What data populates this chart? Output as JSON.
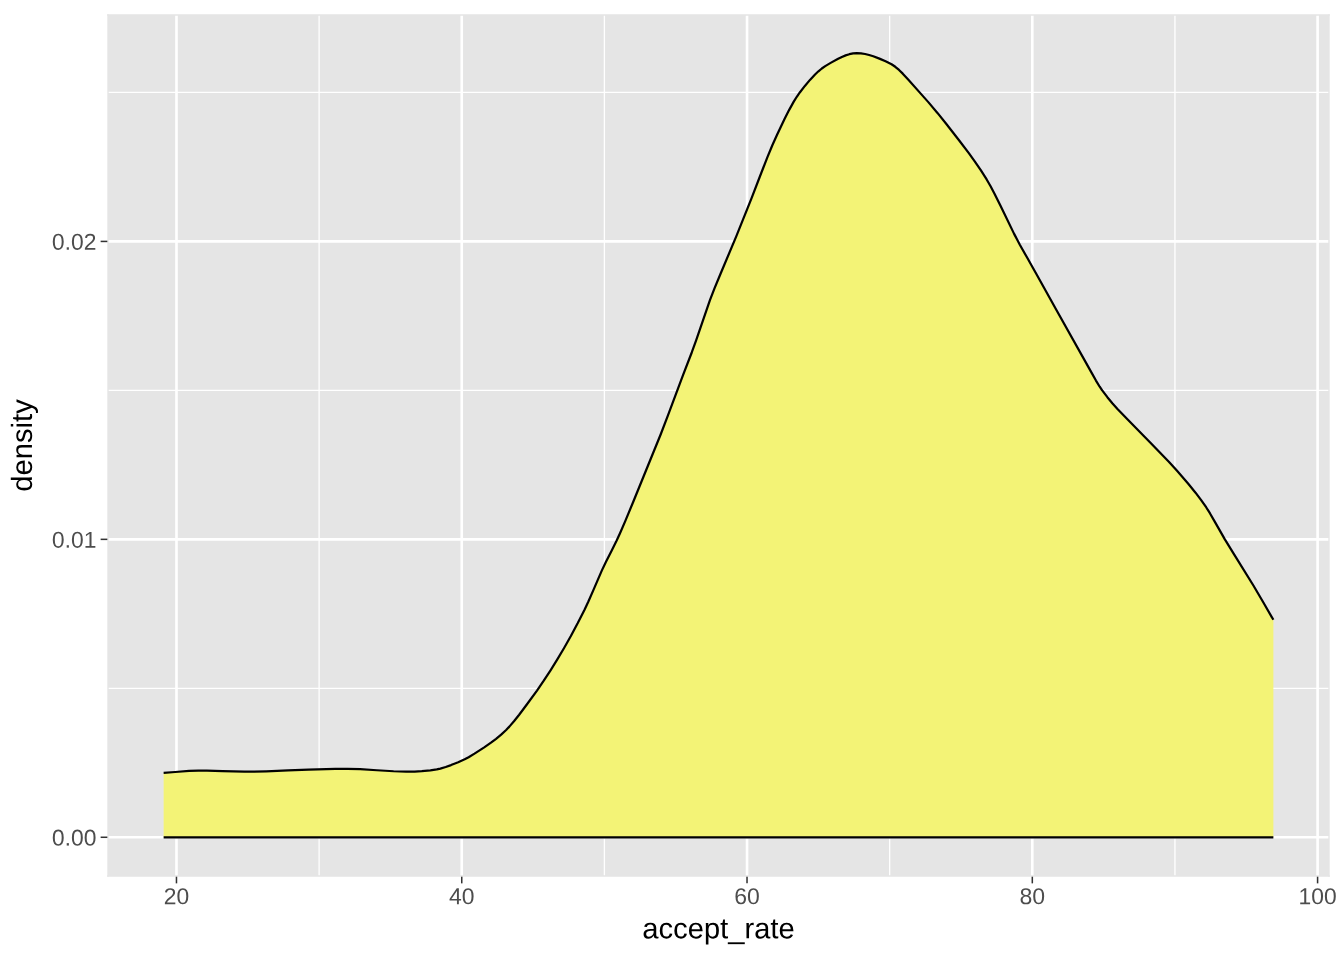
{
  "chart_data": {
    "type": "area",
    "xlabel": "accept_rate",
    "ylabel": "density",
    "x": [
      19.1,
      21.7,
      25.2,
      28.7,
      31.7,
      36.4,
      38.0,
      40.0,
      41.1,
      43.0,
      44.8,
      46.7,
      48.6,
      50.0,
      50.9,
      52.4,
      54.3,
      55.1,
      56.2,
      57.4,
      59.1,
      60.2,
      62.0,
      63.7,
      65.6,
      67.7,
      70.0,
      72.1,
      74.6,
      76.8,
      79.0,
      80.0,
      81.1,
      83.5,
      84.9,
      87.8,
      90.0,
      92.1,
      93.5,
      95.5,
      96.9
    ],
    "series": [
      {
        "color": "#f3f376",
        "values": [
          0.00216,
          0.00224,
          0.0022,
          0.00226,
          0.0023,
          0.0022,
          0.00226,
          0.00257,
          0.00287,
          0.00355,
          0.00461,
          0.00597,
          0.00763,
          0.00914,
          0.01,
          0.0117,
          0.01396,
          0.015,
          0.01637,
          0.01803,
          0.02,
          0.02131,
          0.02347,
          0.025,
          0.02592,
          0.02632,
          0.02598,
          0.025,
          0.02356,
          0.02208,
          0.02,
          0.01915,
          0.0182,
          0.01617,
          0.015,
          0.01348,
          0.01238,
          0.01114,
          0.01,
          0.00845,
          0.0073
        ]
      }
    ],
    "xlim": [
      15.2,
      100.8
    ],
    "ylim": [
      -0.0013,
      0.0276
    ],
    "xticks": [
      20,
      40,
      60,
      80,
      100
    ],
    "yticks": [
      {
        "value": 0,
        "label": "0.00"
      },
      {
        "value": 0.01,
        "label": "0.01"
      },
      {
        "value": 0.02,
        "label": "0.02"
      }
    ],
    "grid": true
  }
}
